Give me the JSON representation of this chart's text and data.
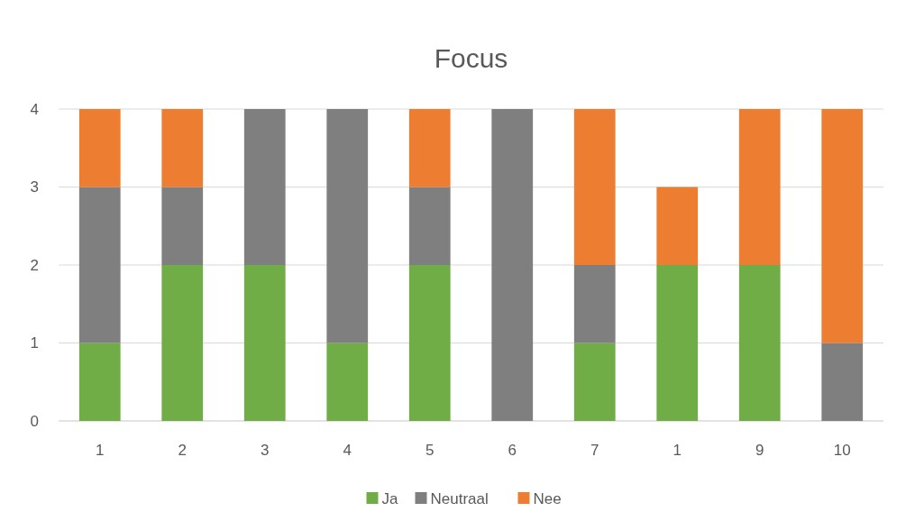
{
  "chart_data": {
    "type": "bar",
    "title": "Focus",
    "categories": [
      "1",
      "2",
      "3",
      "4",
      "5",
      "6",
      "7",
      "1",
      "9",
      "10"
    ],
    "stacked": true,
    "series": [
      {
        "name": "Ja",
        "color": "#70ad47",
        "values": [
          1,
          2,
          2,
          1,
          2,
          0,
          1,
          2,
          2,
          0
        ]
      },
      {
        "name": "Neutraal",
        "color": "#7f7f7f",
        "values": [
          2,
          1,
          2,
          3,
          1,
          4,
          1,
          0,
          0,
          1
        ]
      },
      {
        "name": "Nee",
        "color": "#ed7d31",
        "values": [
          1,
          1,
          0,
          0,
          1,
          0,
          2,
          1,
          2,
          3
        ]
      }
    ],
    "ylim": [
      0,
      4
    ],
    "yticks": [
      0,
      1,
      2,
      3,
      4
    ],
    "grid": "y",
    "legend": "bottom"
  }
}
